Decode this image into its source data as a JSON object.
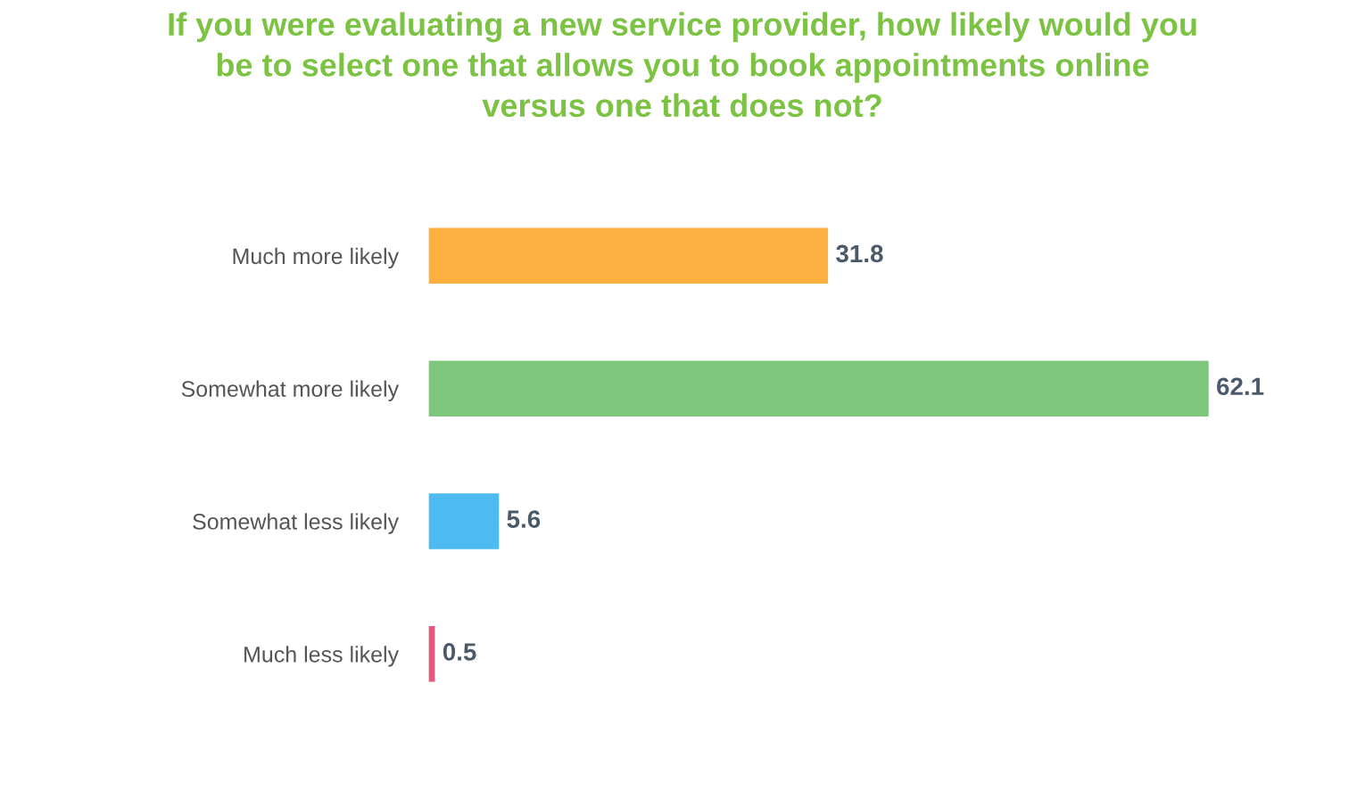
{
  "chart_data": {
    "type": "bar",
    "orientation": "horizontal",
    "title": "If you were evaluating a new service provider, how likely would you\nbe to select one that allows you to book appointments online\nversus one that does not?",
    "categories": [
      "Much more likely",
      "Somewhat more likely",
      "Somewhat less likely",
      "Much less likely"
    ],
    "values": [
      31.8,
      62.1,
      5.6,
      0.5
    ],
    "colors": [
      "#fbb040",
      "#7dc67b",
      "#4dbaf0",
      "#e8577d"
    ],
    "data_labels": true,
    "grid": false,
    "legend": false
  }
}
